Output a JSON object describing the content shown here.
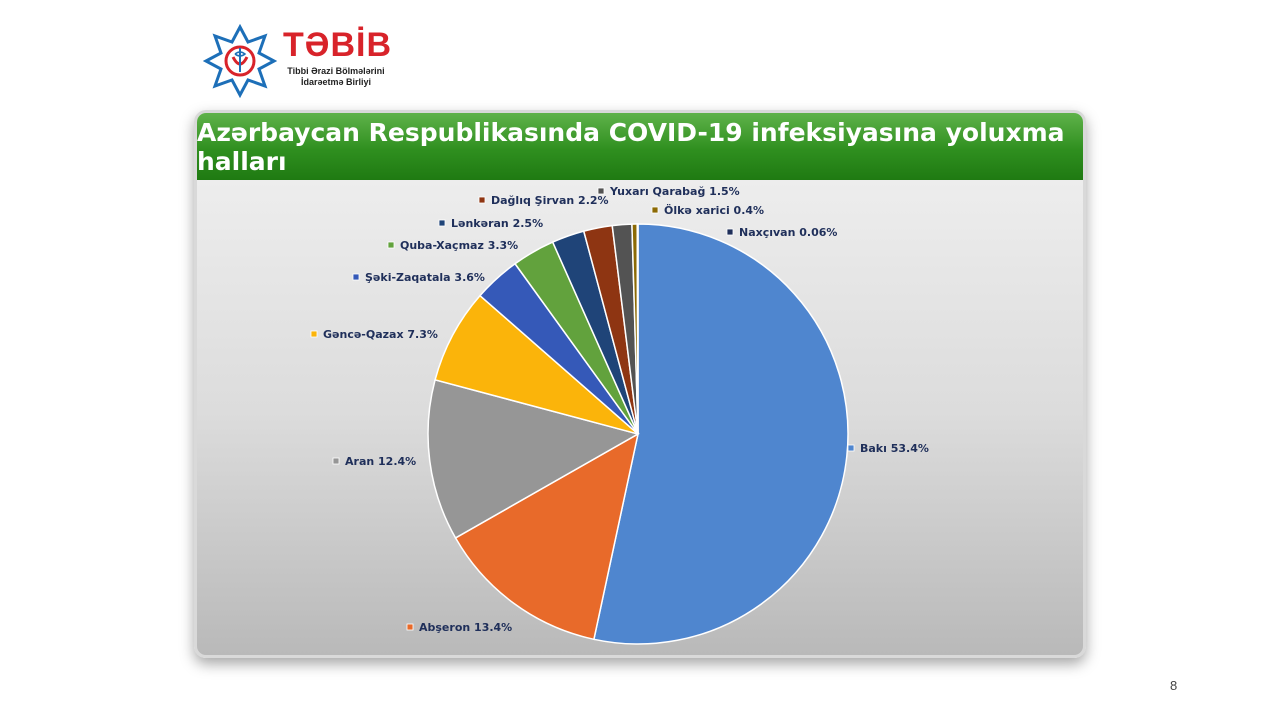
{
  "logo": {
    "name": "TƏBİB",
    "subtitle_line1": "Tibbi Ərazi Bölmələrini",
    "subtitle_line2": "İdarəetmə Birliyi"
  },
  "page_number": "8",
  "colors": {
    "header_green": "#2f8f1f",
    "label_text": "#1f2f5a"
  },
  "chart_data": {
    "type": "pie",
    "title": "Azərbaycan Respublikasında COVID-19 infeksiyasına yoluxma halları",
    "start": "12 o'clock, clockwise",
    "slices": [
      {
        "name": "Bakı",
        "value": 53.4,
        "label": "Bakı  53.4%",
        "color": "#4f86cf"
      },
      {
        "name": "Abşeron",
        "value": 13.4,
        "label": "Abşeron 13.4%",
        "color": "#e86a2a"
      },
      {
        "name": "Aran",
        "value": 12.4,
        "label": "Aran 12.4%",
        "color": "#969696"
      },
      {
        "name": "Gəncə-Qazax",
        "value": 7.3,
        "label": "Gəncə-Qazax 7.3%",
        "color": "#fbb40a"
      },
      {
        "name": "Şəki-Zaqatala",
        "value": 3.6,
        "label": "Şəki-Zaqatala 3.6%",
        "color": "#3559b8"
      },
      {
        "name": "Quba-Xaçmaz",
        "value": 3.3,
        "label": "Quba-Xaçmaz 3.3%",
        "color": "#62a23d"
      },
      {
        "name": "Lənkəran",
        "value": 2.5,
        "label": "Lənkəran 2.5%",
        "color": "#1f4478"
      },
      {
        "name": "Dağlıq Şirvan",
        "value": 2.2,
        "label": "Dağlıq Şirvan 2.2%",
        "color": "#8e3512"
      },
      {
        "name": "Yuxarı Qarabağ",
        "value": 1.5,
        "label": "Yuxarı Qarabağ 1.5%",
        "color": "#535353"
      },
      {
        "name": "Ölkə xarici",
        "value": 0.4,
        "label": "Ölkə xarici 0.4%",
        "color": "#8c6a05"
      },
      {
        "name": "Naxçıvan",
        "value": 0.06,
        "label": "Naxçıvan 0.06%",
        "color": "#1f2f5a"
      }
    ]
  }
}
